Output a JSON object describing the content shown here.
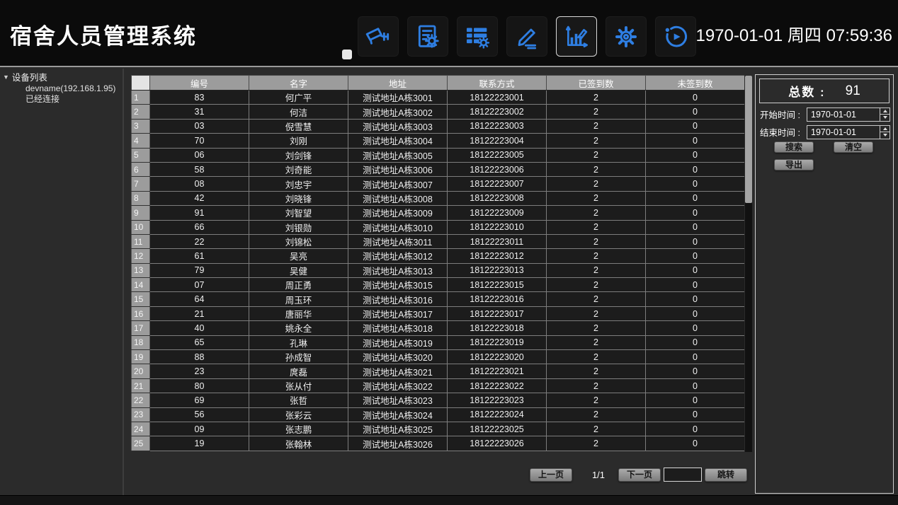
{
  "header": {
    "title": "宿舍人员管理系统",
    "datetime": "1970-01-01 周四 07:59:36",
    "toolbar": [
      {
        "id": "camera",
        "label": "监控预览",
        "active": false
      },
      {
        "id": "report",
        "label": "报表配置",
        "active": false
      },
      {
        "id": "data",
        "label": "数据管理",
        "active": false
      },
      {
        "id": "sign",
        "label": "签到登记",
        "active": false
      },
      {
        "id": "stats",
        "label": "统计报表",
        "active": true
      },
      {
        "id": "settings",
        "label": "系统设置",
        "active": false
      },
      {
        "id": "playback",
        "label": "记录回放",
        "active": false
      }
    ]
  },
  "colors": {
    "icon_accent": "#2e7ee2",
    "header_bg": "#0b0b0b",
    "body_bg": "#2b2b2b",
    "table_header_bg": "#9c9c9c",
    "row_bg": "#1c1c1c"
  },
  "sidebar": {
    "tree_label": "设备列表",
    "device_name": "devname(192.168.1.95)",
    "device_status": "已经连接"
  },
  "table": {
    "columns": [
      "编号",
      "名字",
      "地址",
      "联系方式",
      "已签到数",
      "未签到数"
    ],
    "rows": [
      [
        "83",
        "何广平",
        "测试地址A栋3001",
        "18122223001",
        "2",
        "0"
      ],
      [
        "31",
        "何洁",
        "测试地址A栋3002",
        "18122223002",
        "2",
        "0"
      ],
      [
        "03",
        "倪雪慧",
        "测试地址A栋3003",
        "18122223003",
        "2",
        "0"
      ],
      [
        "70",
        "刘刚",
        "测试地址A栋3004",
        "18122223004",
        "2",
        "0"
      ],
      [
        "06",
        "刘剑锋",
        "测试地址A栋3005",
        "18122223005",
        "2",
        "0"
      ],
      [
        "58",
        "刘奇能",
        "测试地址A栋3006",
        "18122223006",
        "2",
        "0"
      ],
      [
        "08",
        "刘忠宇",
        "测试地址A栋3007",
        "18122223007",
        "2",
        "0"
      ],
      [
        "42",
        "刘晓锋",
        "测试地址A栋3008",
        "18122223008",
        "2",
        "0"
      ],
      [
        "91",
        "刘智望",
        "测试地址A栋3009",
        "18122223009",
        "2",
        "0"
      ],
      [
        "66",
        "刘银勋",
        "测试地址A栋3010",
        "18122223010",
        "2",
        "0"
      ],
      [
        "22",
        "刘锦松",
        "测试地址A栋3011",
        "18122223011",
        "2",
        "0"
      ],
      [
        "61",
        "吴亮",
        "测试地址A栋3012",
        "18122223012",
        "2",
        "0"
      ],
      [
        "79",
        "吴健",
        "测试地址A栋3013",
        "18122223013",
        "2",
        "0"
      ],
      [
        "07",
        "周正勇",
        "测试地址A栋3015",
        "18122223015",
        "2",
        "0"
      ],
      [
        "64",
        "周玉环",
        "测试地址A栋3016",
        "18122223016",
        "2",
        "0"
      ],
      [
        "21",
        "唐丽华",
        "测试地址A栋3017",
        "18122223017",
        "2",
        "0"
      ],
      [
        "40",
        "姚永全",
        "测试地址A栋3018",
        "18122223018",
        "2",
        "0"
      ],
      [
        "65",
        "孔琳",
        "测试地址A栋3019",
        "18122223019",
        "2",
        "0"
      ],
      [
        "88",
        "孙成智",
        "测试地址A栋3020",
        "18122223020",
        "2",
        "0"
      ],
      [
        "23",
        "庹磊",
        "测试地址A栋3021",
        "18122223021",
        "2",
        "0"
      ],
      [
        "80",
        "张从付",
        "测试地址A栋3022",
        "18122223022",
        "2",
        "0"
      ],
      [
        "69",
        "张哲",
        "测试地址A栋3023",
        "18122223023",
        "2",
        "0"
      ],
      [
        "56",
        "张彩云",
        "测试地址A栋3024",
        "18122223024",
        "2",
        "0"
      ],
      [
        "09",
        "张志鹏",
        "测试地址A栋3025",
        "18122223025",
        "2",
        "0"
      ],
      [
        "19",
        "张翰林",
        "测试地址A栋3026",
        "18122223026",
        "2",
        "0"
      ]
    ]
  },
  "pagination": {
    "prev_label": "上一页",
    "page_indicator": "1/1",
    "next_label": "下一页",
    "jump_value": "",
    "jump_label": "跳转"
  },
  "panel": {
    "total_label": "总数 :",
    "total_value": "91",
    "start_label": "开始时间 :",
    "start_value": "1970-01-01",
    "end_label": "结束时间 :",
    "end_value": "1970-01-01",
    "search_label": "搜索",
    "clear_label": "清空",
    "export_label": "导出"
  }
}
